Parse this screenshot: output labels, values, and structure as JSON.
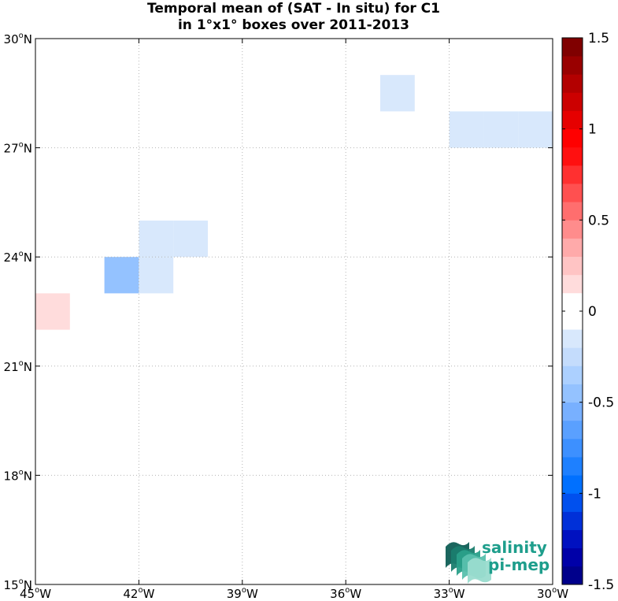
{
  "chart_data": {
    "type": "heatmap",
    "title": [
      "Temporal mean of (SAT - In situ) for C1",
      "in 1°x1° boxes over 2011-2013"
    ],
    "xlabel": "",
    "ylabel": "",
    "xlim": [
      -45,
      -30
    ],
    "ylim": [
      15,
      30
    ],
    "grid": true,
    "x_ticks": [
      {
        "value": -45,
        "label": "45",
        "unit": "W"
      },
      {
        "value": -42,
        "label": "42",
        "unit": "W"
      },
      {
        "value": -39,
        "label": "39",
        "unit": "W"
      },
      {
        "value": -36,
        "label": "36",
        "unit": "W"
      },
      {
        "value": -33,
        "label": "33",
        "unit": "W"
      },
      {
        "value": -30,
        "label": "30",
        "unit": "W"
      }
    ],
    "y_ticks": [
      {
        "value": 30,
        "label": "30",
        "unit": "N"
      },
      {
        "value": 27,
        "label": "27",
        "unit": "N"
      },
      {
        "value": 24,
        "label": "24",
        "unit": "N"
      },
      {
        "value": 21,
        "label": "21",
        "unit": "N"
      },
      {
        "value": 18,
        "label": "18",
        "unit": "N"
      },
      {
        "value": 15,
        "label": "15",
        "unit": "N"
      }
    ],
    "degree_symbol": "o",
    "cells": [
      {
        "lon": [
          -35,
          -34
        ],
        "lat": [
          28,
          29
        ],
        "value": -0.15
      },
      {
        "lon": [
          -33,
          -32
        ],
        "lat": [
          27,
          28
        ],
        "value": -0.15
      },
      {
        "lon": [
          -32,
          -31
        ],
        "lat": [
          27,
          28
        ],
        "value": -0.15
      },
      {
        "lon": [
          -31,
          -30
        ],
        "lat": [
          27,
          28
        ],
        "value": -0.15
      },
      {
        "lon": [
          -42,
          -41
        ],
        "lat": [
          24,
          25
        ],
        "value": -0.15
      },
      {
        "lon": [
          -41,
          -40
        ],
        "lat": [
          24,
          25
        ],
        "value": -0.15
      },
      {
        "lon": [
          -43,
          -42
        ],
        "lat": [
          23,
          24
        ],
        "value": -0.4
      },
      {
        "lon": [
          -42,
          -41
        ],
        "lat": [
          23,
          24
        ],
        "value": -0.15
      },
      {
        "lon": [
          -45,
          -44
        ],
        "lat": [
          22,
          23
        ],
        "value": 0.15
      }
    ],
    "colorbar": {
      "range": [
        -1.5,
        1.5
      ],
      "step": 0.1,
      "ticks": [
        {
          "value": 1.5,
          "label": "1.5"
        },
        {
          "value": 1,
          "label": "1"
        },
        {
          "value": 0.5,
          "label": "0.5"
        },
        {
          "value": 0,
          "label": "0"
        },
        {
          "value": -0.5,
          "label": "-0.5"
        },
        {
          "value": -1,
          "label": "-1"
        },
        {
          "value": -1.5,
          "label": "-1.5"
        }
      ],
      "colors": [
        "#00008b",
        "#0000a8",
        "#0011c0",
        "#0030d8",
        "#0050ee",
        "#0070ff",
        "#1e80ff",
        "#3d90ff",
        "#5aa0ff",
        "#78b0ff",
        "#94c2ff",
        "#acd0ff",
        "#c4dcfc",
        "#d8e8fc",
        "#ffffff",
        "#ffffff",
        "#ffdcdc",
        "#ffc4c4",
        "#ffaaaa",
        "#ff8c8c",
        "#ff6e6e",
        "#ff5050",
        "#ff3030",
        "#ff1010",
        "#ff0000",
        "#e60000",
        "#cc0000",
        "#b30000",
        "#990000",
        "#800000"
      ],
      "cell_colors": {
        "0.15": "#ffdcdc",
        "-0.15": "#d8e8fc",
        "-0.4": "#94c2ff"
      }
    },
    "logo": {
      "line1": "salinity",
      "line2": "pi-mep",
      "color": "#1e9e8c"
    }
  }
}
